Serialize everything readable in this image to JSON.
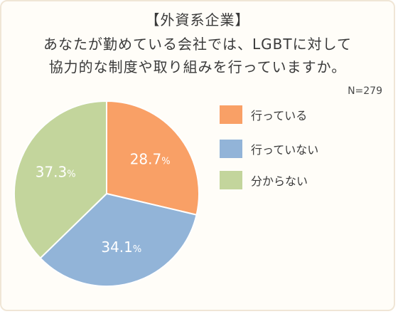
{
  "title_lines": [
    "【外資系企業】",
    "あなたが勤めている会社では、LGBTに対して",
    "協力的な制度や取り組みを行っていますか。"
  ],
  "n_label": "N=279",
  "colors": {
    "orange": "#f9a066",
    "blue": "#92b4d8",
    "green": "#c3d59c"
  },
  "chart_data": {
    "type": "pie",
    "title": "【外資系企業】 あなたが勤めている会社では、LGBTに対して 協力的な制度や取り組みを行っていますか。",
    "start": "12 o'clock",
    "direction": "clockwise",
    "slices": [
      {
        "label": "行っている",
        "value": 28.7,
        "value_text": "28.7",
        "unit": "%",
        "color": "#f9a066"
      },
      {
        "label": "行っていない",
        "value": 34.1,
        "value_text": "34.1",
        "unit": "%",
        "color": "#92b4d8"
      },
      {
        "label": "分からない",
        "value": 37.3,
        "value_text": "37.3",
        "unit": "%",
        "color": "#c3d59c"
      }
    ],
    "legend_position": "right"
  }
}
